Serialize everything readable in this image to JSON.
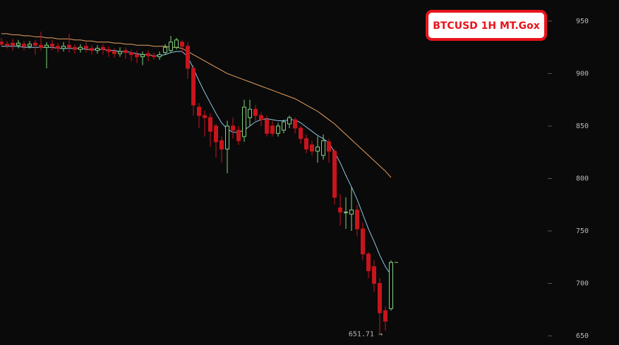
{
  "chart_data": {
    "type": "candlestick",
    "title": "BTCUSD 1H MT.Gox",
    "open": [
      930,
      928,
      929,
      927,
      928,
      926,
      929,
      927,
      925,
      928,
      926,
      924,
      927,
      925,
      923,
      926,
      924,
      922,
      925,
      923,
      921,
      919,
      922,
      920,
      918,
      916,
      919,
      917,
      916,
      920,
      922,
      925,
      930,
      926,
      905,
      868,
      860,
      858,
      850,
      836,
      828,
      850,
      846,
      840,
      858,
      866,
      860,
      856,
      850,
      843,
      846,
      852,
      856,
      848,
      838,
      832,
      826,
      822,
      835,
      826,
      772,
      768,
      766,
      770,
      752,
      728,
      716,
      700,
      674,
      676
    ],
    "high": [
      934,
      931,
      933,
      932,
      931,
      931,
      932,
      940,
      930,
      932,
      929,
      930,
      938,
      928,
      928,
      930,
      927,
      927,
      928,
      926,
      924,
      925,
      925,
      923,
      922,
      921,
      922,
      920,
      921,
      928,
      936,
      934,
      932,
      930,
      908,
      872,
      865,
      862,
      852,
      840,
      855,
      858,
      850,
      875,
      875,
      870,
      863,
      860,
      855,
      853,
      856,
      860,
      858,
      850,
      842,
      836,
      840,
      842,
      838,
      828,
      785,
      782,
      792,
      775,
      758,
      730,
      722,
      705,
      678,
      722
    ],
    "low": [
      926,
      924,
      922,
      924,
      922,
      924,
      918,
      922,
      905,
      922,
      920,
      921,
      920,
      919,
      920,
      920,
      918,
      919,
      918,
      916,
      915,
      916,
      914,
      912,
      910,
      908,
      912,
      913,
      913,
      918,
      920,
      923,
      920,
      895,
      860,
      848,
      840,
      830,
      820,
      815,
      805,
      838,
      832,
      835,
      850,
      855,
      850,
      840,
      840,
      840,
      843,
      848,
      843,
      833,
      824,
      822,
      815,
      818,
      815,
      775,
      755,
      752,
      750,
      745,
      722,
      705,
      692,
      651.71,
      655,
      674
    ],
    "close": [
      928,
      927,
      927,
      929,
      926,
      928,
      927,
      925,
      927,
      926,
      924,
      926,
      925,
      923,
      925,
      924,
      922,
      924,
      923,
      921,
      919,
      921,
      920,
      918,
      916,
      918,
      917,
      916,
      918,
      925,
      930,
      932,
      926,
      905,
      870,
      860,
      858,
      845,
      835,
      828,
      850,
      846,
      836,
      868,
      866,
      860,
      856,
      843,
      843,
      850,
      854,
      858,
      848,
      838,
      828,
      826,
      830,
      836,
      826,
      782,
      768,
      768,
      770,
      752,
      728,
      712,
      700,
      672,
      664,
      720
    ],
    "low_labels": [
      null,
      null,
      null,
      null,
      null,
      null,
      null,
      null,
      null,
      null,
      null,
      null,
      null,
      null,
      null,
      null,
      null,
      null,
      null,
      null,
      null,
      null,
      null,
      null,
      null,
      null,
      null,
      null,
      null,
      null,
      null,
      null,
      null,
      null,
      null,
      null,
      null,
      null,
      null,
      null,
      null,
      null,
      null,
      null,
      null,
      null,
      null,
      null,
      null,
      null,
      null,
      null,
      null,
      null,
      null,
      null,
      null,
      null,
      null,
      null,
      null,
      null,
      null,
      null,
      null,
      null,
      null,
      "651.71 →",
      null,
      null
    ],
    "series": [
      {
        "color": "#8ec6e6",
        "values": [
          926,
          926,
          926,
          926,
          925,
          925,
          925,
          925,
          925,
          925,
          924,
          924,
          924,
          924,
          924,
          923,
          923,
          923,
          923,
          922,
          922,
          921,
          921,
          920,
          919,
          918,
          918,
          917,
          917,
          918,
          920,
          921,
          921,
          916,
          905,
          893,
          882,
          872,
          862,
          853,
          847,
          844,
          844,
          846,
          850,
          854,
          856,
          857,
          856,
          855,
          855,
          856,
          856,
          853,
          849,
          845,
          841,
          838,
          834,
          825,
          815,
          803,
          792,
          780,
          766,
          752,
          740,
          727,
          716,
          708
        ]
      },
      {
        "color": "#e8a060",
        "values": [
          938,
          938,
          937,
          937,
          936,
          936,
          935,
          935,
          934,
          934,
          933,
          933,
          933,
          932,
          932,
          931,
          931,
          930,
          930,
          930,
          929,
          929,
          928,
          928,
          927,
          927,
          927,
          926,
          926,
          926,
          925,
          925,
          924,
          921,
          918,
          915,
          912,
          909,
          906,
          903,
          900,
          898,
          896,
          894,
          892,
          890,
          888,
          886,
          884,
          882,
          880,
          878,
          876,
          873,
          870,
          867,
          864,
          860,
          856,
          852,
          847,
          842,
          837,
          832,
          827,
          822,
          817,
          812,
          807,
          801
        ]
      }
    ],
    "up_color": "#7fd47f",
    "down_color": "#c8141c",
    "ylim": [
      641.3,
      970.1
    ],
    "yticks": [
      650,
      700,
      750,
      800,
      850,
      900,
      950
    ]
  }
}
